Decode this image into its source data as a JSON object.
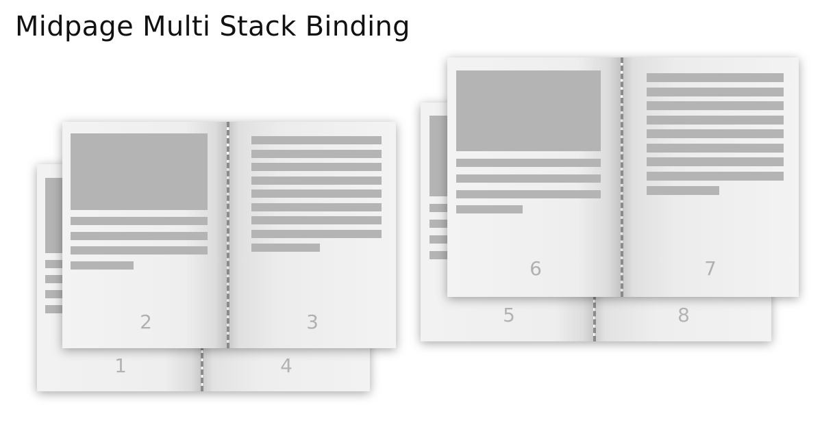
{
  "title": "Midpage Multi Stack Binding",
  "stacks": [
    {
      "back": {
        "left_page": "1",
        "right_page": "4"
      },
      "front": {
        "left_page": "2",
        "right_page": "3"
      }
    },
    {
      "back": {
        "left_page": "5",
        "right_page": "8"
      },
      "front": {
        "left_page": "6",
        "right_page": "7"
      }
    }
  ],
  "colors": {
    "spine_stitch": "#8a8a8a",
    "placeholder_block": "#b4b4b4",
    "page_number": "#b3b3b3"
  }
}
